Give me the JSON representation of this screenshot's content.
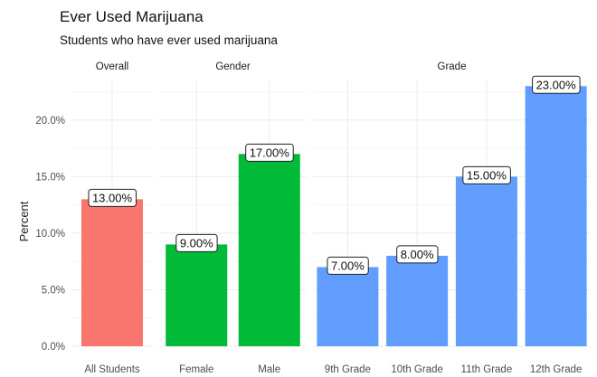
{
  "chart_data": {
    "type": "bar",
    "title": "Ever Used Marijuana",
    "subtitle": "Students who have ever used marijuana",
    "ylabel": "Percent",
    "ylim": [
      0,
      0.235
    ],
    "yticks": [
      {
        "value": 0.0,
        "label": "0.0%"
      },
      {
        "value": 0.05,
        "label": "5.0%"
      },
      {
        "value": 0.1,
        "label": "10.0%"
      },
      {
        "value": 0.15,
        "label": "15.0%"
      },
      {
        "value": 0.2,
        "label": "20.0%"
      }
    ],
    "grid": true,
    "facets": [
      {
        "name": "Overall",
        "color": "#F8766D",
        "categories": [
          "All Students"
        ],
        "values": [
          0.13
        ],
        "labels": [
          "13.00%"
        ]
      },
      {
        "name": "Gender",
        "color": "#00BA38",
        "categories": [
          "Female",
          "Male"
        ],
        "values": [
          0.09,
          0.17
        ],
        "labels": [
          "9.00%",
          "17.00%"
        ]
      },
      {
        "name": "Grade",
        "color": "#619CFF",
        "categories": [
          "9th Grade",
          "10th Grade",
          "11th Grade",
          "12th Grade"
        ],
        "values": [
          0.07,
          0.08,
          0.15,
          0.23
        ],
        "labels": [
          "7.00%",
          "8.00%",
          "15.00%",
          "23.00%"
        ]
      }
    ]
  }
}
